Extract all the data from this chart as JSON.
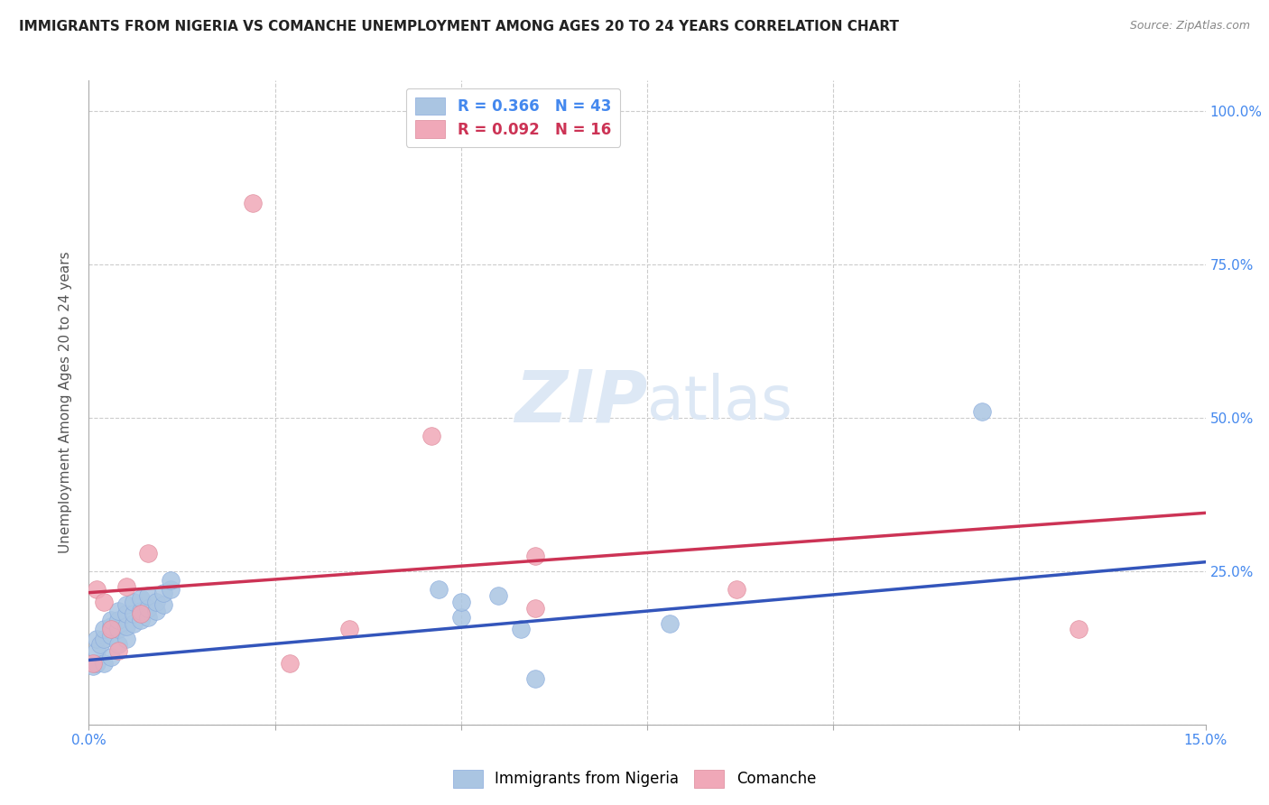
{
  "title": "IMMIGRANTS FROM NIGERIA VS COMANCHE UNEMPLOYMENT AMONG AGES 20 TO 24 YEARS CORRELATION CHART",
  "source": "Source: ZipAtlas.com",
  "ylabel": "Unemployment Among Ages 20 to 24 years",
  "xlim": [
    0.0,
    0.15
  ],
  "ylim": [
    0.0,
    1.05
  ],
  "ytick_values": [
    0.0,
    0.25,
    0.5,
    0.75,
    1.0
  ],
  "xtick_values": [
    0.0,
    0.025,
    0.05,
    0.075,
    0.1,
    0.125,
    0.15
  ],
  "blue_color": "#aac5e2",
  "pink_color": "#f0a8b8",
  "blue_line_color": "#3355bb",
  "pink_line_color": "#cc3355",
  "watermark_zip": "ZIP",
  "watermark_atlas": "atlas",
  "watermark_color": "#dde8f5",
  "right_axis_color": "#4488ee",
  "blue_points_x": [
    0.0005,
    0.001,
    0.001,
    0.001,
    0.0015,
    0.002,
    0.002,
    0.002,
    0.003,
    0.003,
    0.003,
    0.003,
    0.004,
    0.004,
    0.004,
    0.004,
    0.005,
    0.005,
    0.005,
    0.005,
    0.006,
    0.006,
    0.006,
    0.007,
    0.007,
    0.007,
    0.008,
    0.008,
    0.008,
    0.009,
    0.009,
    0.01,
    0.01,
    0.011,
    0.011,
    0.047,
    0.05,
    0.05,
    0.055,
    0.058,
    0.06,
    0.078,
    0.12
  ],
  "blue_points_y": [
    0.095,
    0.1,
    0.12,
    0.14,
    0.13,
    0.1,
    0.14,
    0.155,
    0.11,
    0.145,
    0.16,
    0.17,
    0.13,
    0.155,
    0.17,
    0.185,
    0.14,
    0.16,
    0.18,
    0.195,
    0.165,
    0.18,
    0.2,
    0.17,
    0.185,
    0.205,
    0.175,
    0.19,
    0.21,
    0.185,
    0.2,
    0.195,
    0.215,
    0.22,
    0.235,
    0.22,
    0.175,
    0.2,
    0.21,
    0.155,
    0.075,
    0.165,
    0.51
  ],
  "pink_points_x": [
    0.0005,
    0.001,
    0.002,
    0.003,
    0.004,
    0.005,
    0.007,
    0.008,
    0.022,
    0.027,
    0.035,
    0.046,
    0.06,
    0.06,
    0.087,
    0.133
  ],
  "pink_points_y": [
    0.1,
    0.22,
    0.2,
    0.155,
    0.12,
    0.225,
    0.18,
    0.28,
    0.85,
    0.1,
    0.155,
    0.47,
    0.275,
    0.19,
    0.22,
    0.155
  ],
  "blue_line_x": [
    0.0,
    0.15
  ],
  "blue_line_y": [
    0.105,
    0.265
  ],
  "pink_line_x": [
    0.0,
    0.15
  ],
  "pink_line_y": [
    0.215,
    0.345
  ]
}
